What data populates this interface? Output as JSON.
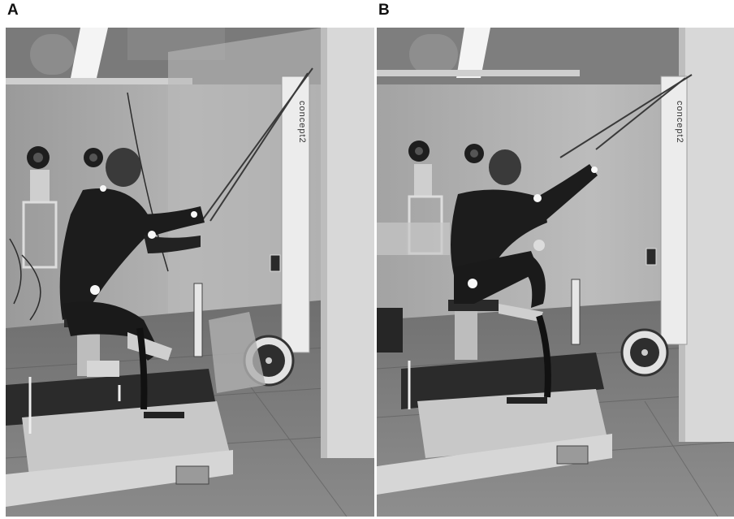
{
  "panels": [
    {
      "label": "A",
      "brand_text": "concept2"
    },
    {
      "label": "B",
      "brand_text": "concept2"
    }
  ]
}
